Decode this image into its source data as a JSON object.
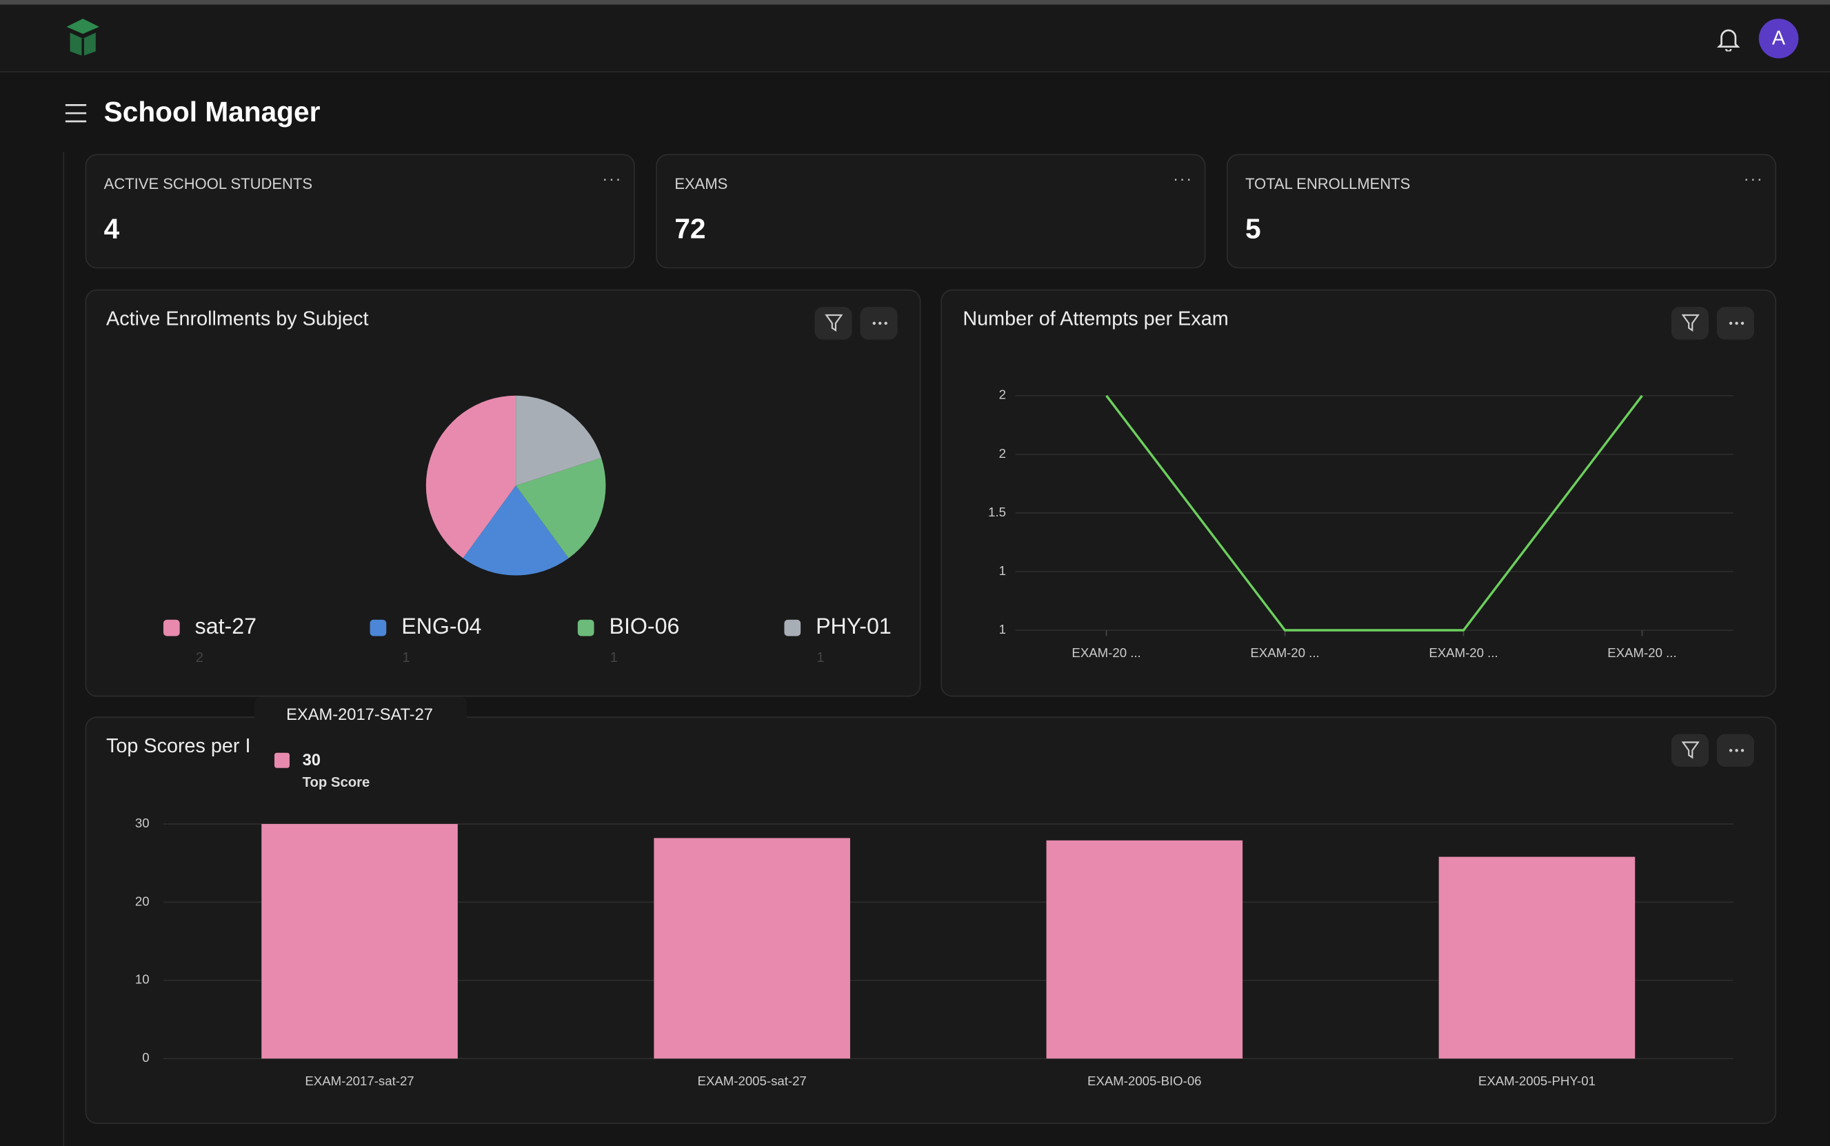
{
  "header": {
    "title": "School Manager",
    "avatar": "A"
  },
  "kpis": [
    {
      "label": "ACTIVE SCHOOL STUDENTS",
      "value": 4
    },
    {
      "label": "EXAMS",
      "value": 72
    },
    {
      "label": "TOTAL ENROLLMENTS",
      "value": 5
    }
  ],
  "chart_data": [
    {
      "type": "pie",
      "title": "Active Enrollments by Subject",
      "categories": [
        "sat-27",
        "ENG-04",
        "BIO-06",
        "PHY-01"
      ],
      "values": [
        2,
        1,
        1,
        1
      ],
      "colors": [
        "#e78aae",
        "#4b87d6",
        "#6dbb7a",
        "#a8aeb6"
      ]
    },
    {
      "type": "line",
      "title": "Number of Attempts per Exam",
      "categories": [
        "EXAM-20 ...",
        "EXAM-20 ...",
        "EXAM-20 ...",
        "EXAM-20 ..."
      ],
      "values": [
        2,
        1,
        1,
        2
      ],
      "color": "#6cd05d",
      "ylim": [
        1,
        2
      ],
      "yticks": [
        1,
        {
          "value": 1.25,
          "label": "1"
        },
        1.5,
        {
          "value": 1.75,
          "label": "2"
        },
        2
      ],
      "grid": true
    },
    {
      "type": "bar",
      "title": "Top Scores per I",
      "categories": [
        "EXAM-2017-sat-27",
        "EXAM-2005-sat-27",
        "EXAM-2005-BIO-06",
        "EXAM-2005-PHY-01"
      ],
      "series": [
        {
          "name": "Top Score",
          "color": "#e78aae",
          "values": [
            30,
            28.2,
            27.9,
            25.8
          ]
        }
      ],
      "ylim": [
        0,
        30
      ],
      "yticks": [
        0,
        10,
        20,
        30
      ],
      "grid": true,
      "tooltip": {
        "title": "EXAM-2017-SAT-27"
      }
    }
  ]
}
